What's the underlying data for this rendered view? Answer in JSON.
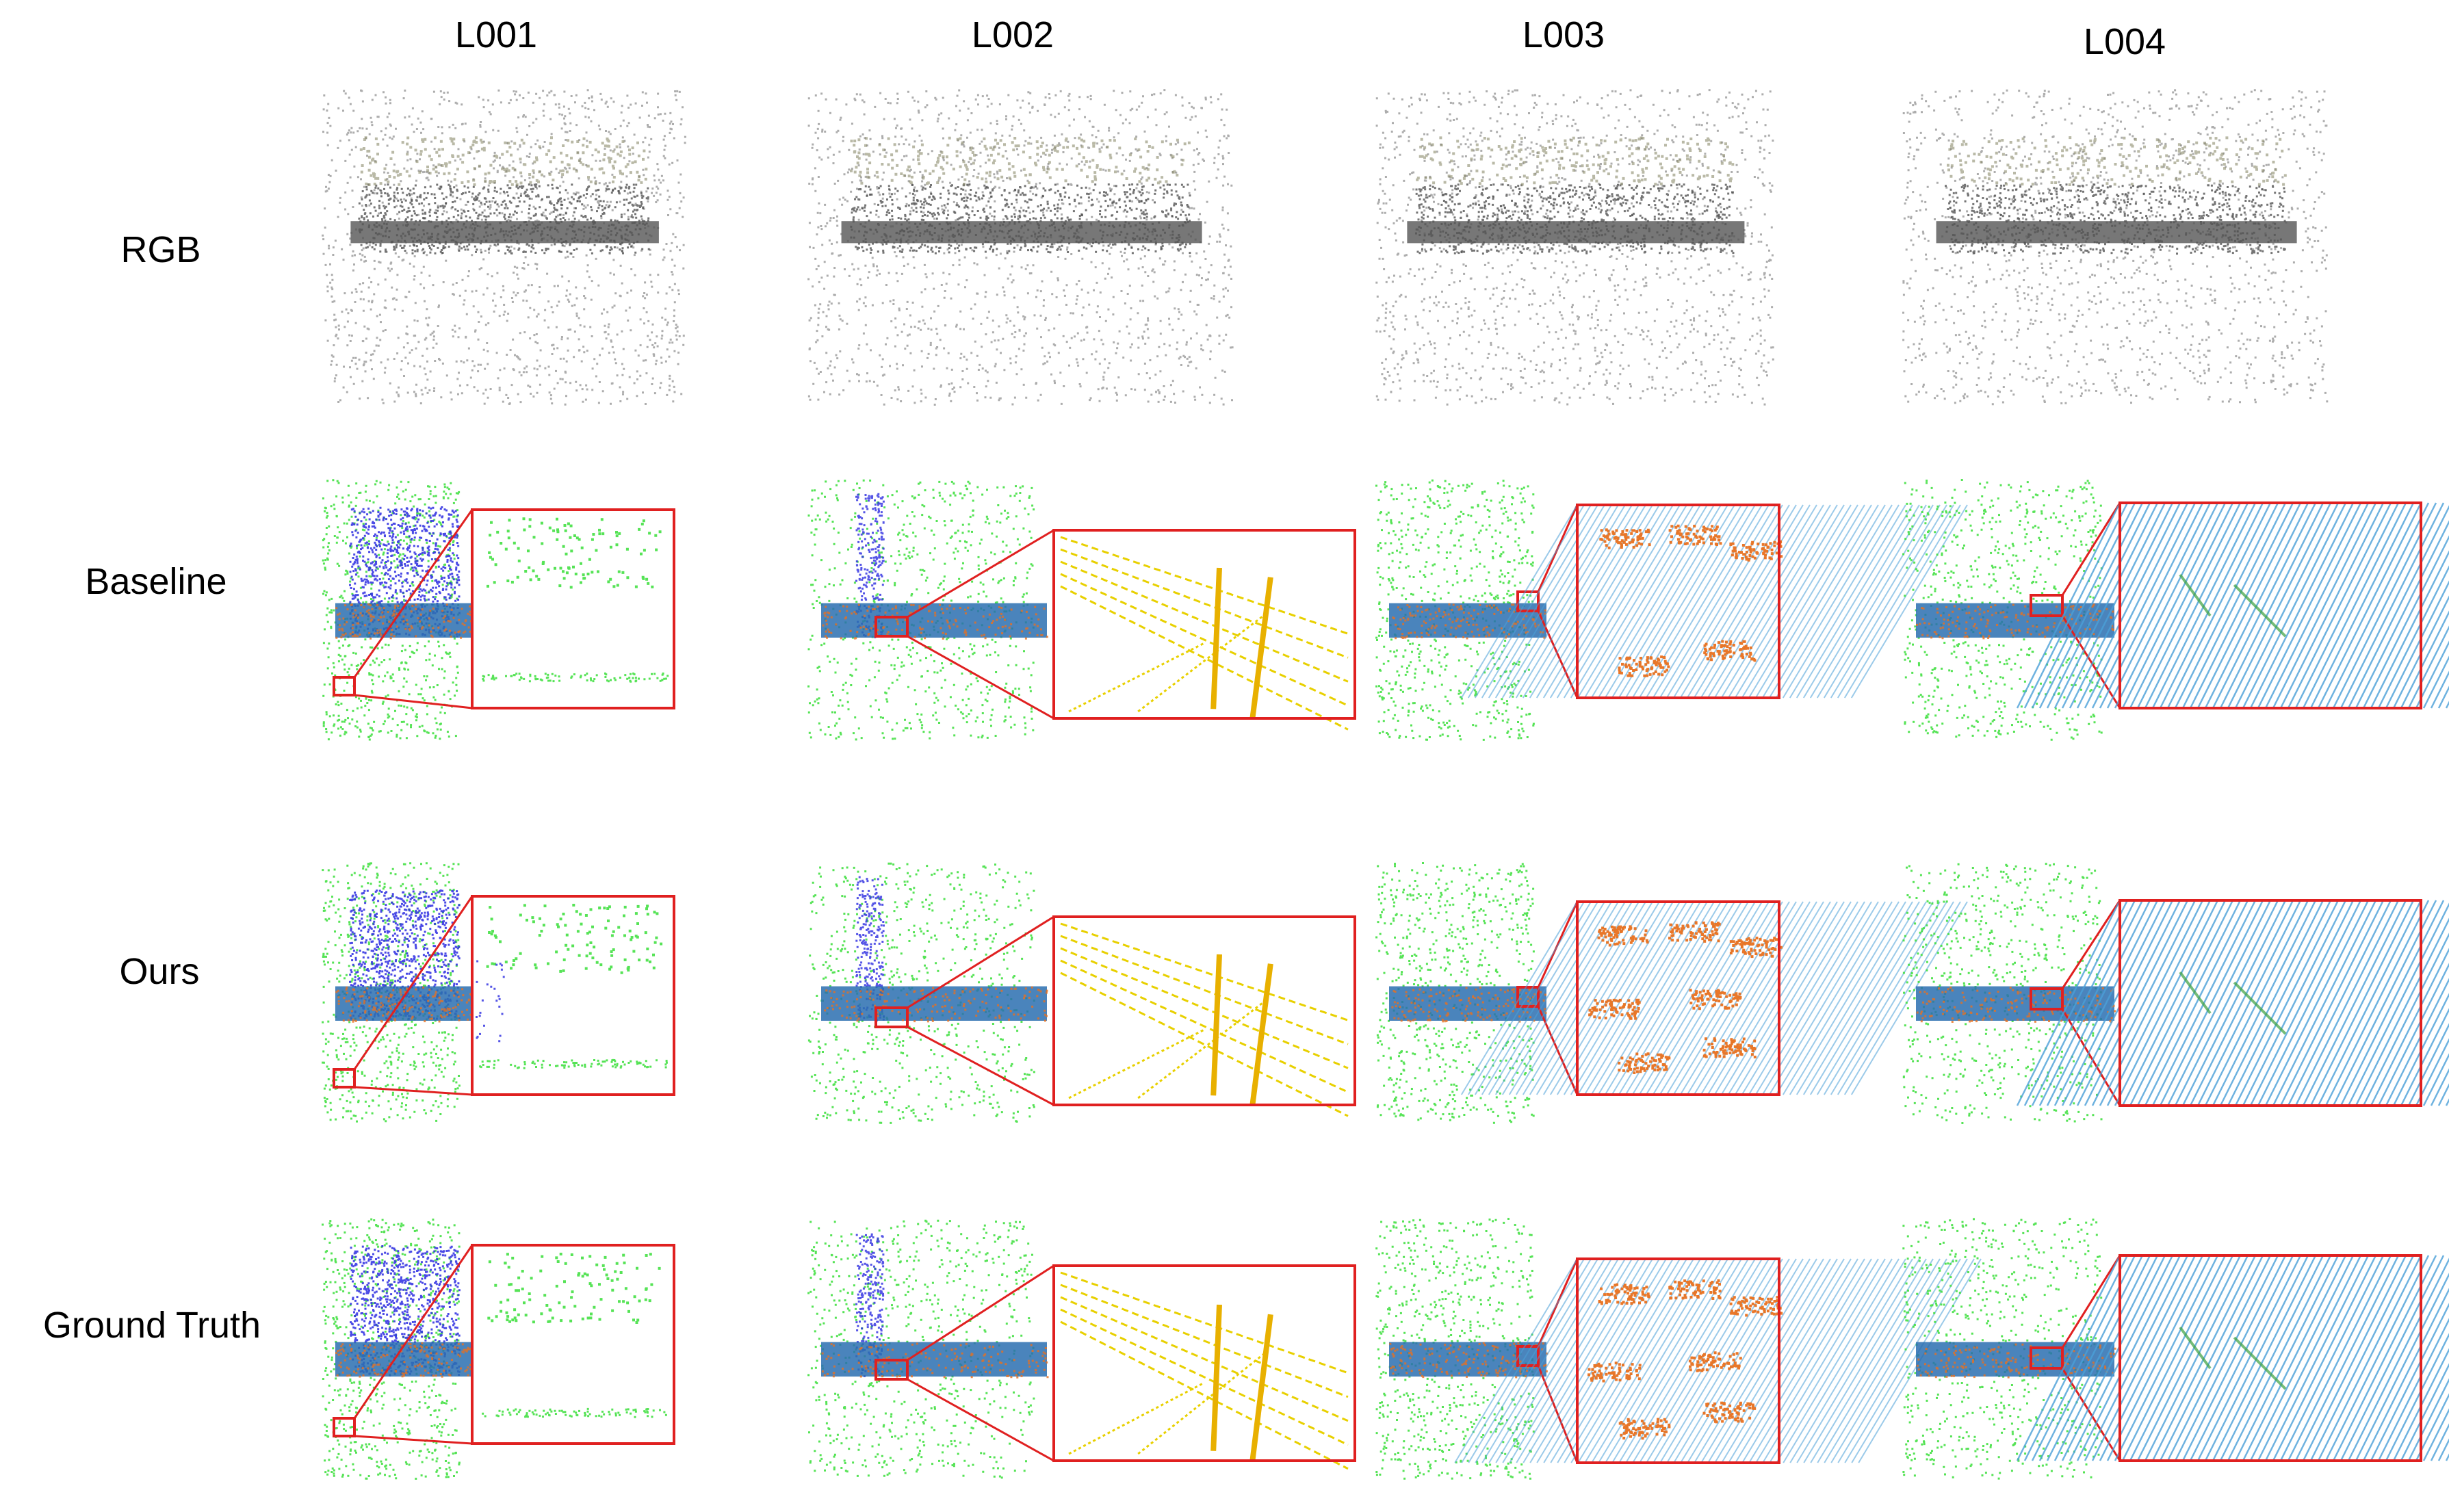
{
  "figure": {
    "columns": [
      {
        "id": "L001",
        "label": "L001"
      },
      {
        "id": "L002",
        "label": "L002"
      },
      {
        "id": "L003",
        "label": "L003"
      },
      {
        "id": "L004",
        "label": "L004"
      }
    ],
    "rows": [
      {
        "id": "rgb",
        "label": "RGB"
      },
      {
        "id": "baseline",
        "label": "Baseline"
      },
      {
        "id": "ours",
        "label": "Ours"
      },
      {
        "id": "gt",
        "label": "Ground Truth"
      }
    ]
  },
  "colors": {
    "zoom_frame": "#e02020",
    "road": "#2a6fb0",
    "vegetation": "#44e044",
    "building": "#2a2ae0",
    "pole": "#e8d000",
    "car": "#e8701e",
    "ground_lines": "#4aa0d8",
    "rgb_points": "#6a6a6a"
  }
}
